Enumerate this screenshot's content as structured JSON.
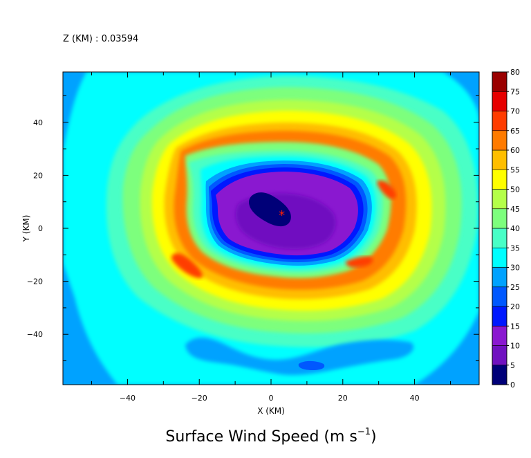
{
  "chart_data": {
    "type": "heatmap",
    "header_label": "Z (KM) : 0.03594",
    "title": "Surface Wind Speed (m s",
    "title_sup": "−1",
    "title_close": ")",
    "xlabel": "X (KM)",
    "ylabel": "Y (KM)",
    "xlim": [
      -58,
      58
    ],
    "ylim": [
      -59,
      59
    ],
    "x_ticks": [
      -40,
      -20,
      0,
      20,
      40
    ],
    "y_ticks": [
      -40,
      -20,
      0,
      20,
      40
    ],
    "x_tick_labels": [
      "−40",
      "−20",
      "0",
      "20",
      "40"
    ],
    "y_tick_labels": [
      "−40",
      "−20",
      "0",
      "20",
      "40"
    ],
    "colorbar": {
      "levels": [
        0,
        5,
        10,
        15,
        20,
        25,
        30,
        35,
        40,
        45,
        50,
        55,
        60,
        65,
        70,
        75,
        80
      ],
      "colors": [
        "#000078",
        "#7011c0",
        "#8a18d0",
        "#0018ff",
        "#0058ff",
        "#00a2ff",
        "#00ffff",
        "#48ffc6",
        "#7dff7d",
        "#b4ff48",
        "#ffff00",
        "#ffbe00",
        "#ff7b00",
        "#ff3c00",
        "#e60000",
        "#9a0000"
      ]
    },
    "storm_center_marker": {
      "x": 3,
      "y": 5,
      "symbol": "*",
      "color": "#ff2000"
    },
    "grid": false
  }
}
